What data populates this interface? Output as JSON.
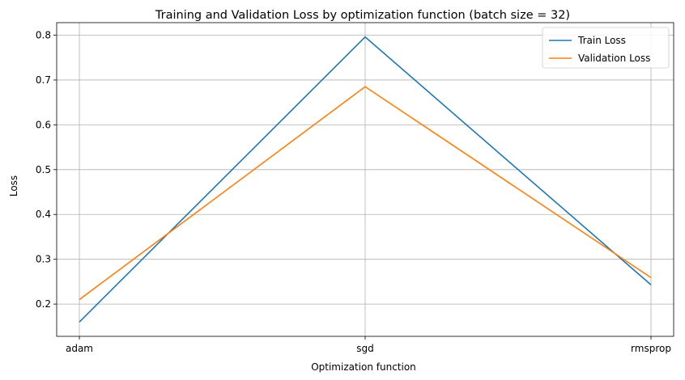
{
  "chart_data": {
    "type": "line",
    "title": "Training and Validation Loss by optimization function (batch size = 32)",
    "xlabel": "Optimization function",
    "ylabel": "Loss",
    "categories": [
      "adam",
      "sgd",
      "rmsprop"
    ],
    "series": [
      {
        "name": "Train Loss",
        "values": [
          0.16,
          0.796,
          0.243
        ],
        "color": "#1f77b4"
      },
      {
        "name": "Validation Loss",
        "values": [
          0.21,
          0.685,
          0.259
        ],
        "color": "#ff7f0e"
      }
    ],
    "ylim": [
      0.128,
      0.828
    ],
    "yticks": [
      0.2,
      0.3,
      0.4,
      0.5,
      0.6,
      0.7,
      0.8
    ],
    "ytick_labels": [
      "0.2",
      "0.3",
      "0.4",
      "0.5",
      "0.6",
      "0.7",
      "0.8"
    ],
    "grid": true,
    "legend_position": "top-right"
  }
}
